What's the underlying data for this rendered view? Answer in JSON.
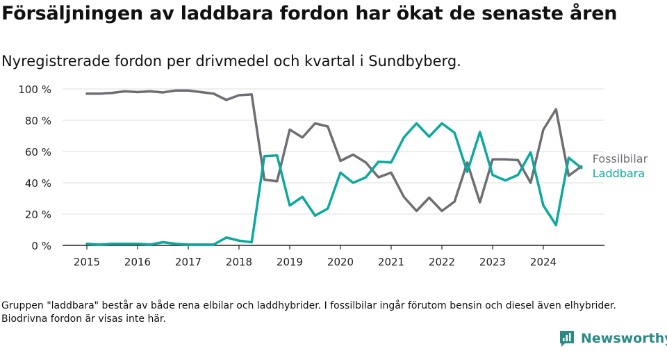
{
  "title": "Försäljningen av laddbara fordon har ökat de senaste åren",
  "subtitle": "Nyregistrerade fordon per drivmedel och kvartal i Sundbyberg.",
  "note": "Gruppen \"laddbara\" består av både rena elbilar och laddhybrider. I fossilbilar ingår förutom bensin och diesel även elhybrider. Biodrivna fordon är visas inte här.",
  "brand": "Newsworthy",
  "colors": {
    "fossil": "#6e6d73",
    "laddbara": "#0ba99d",
    "grid": "#dcdcdc",
    "axis": "#222222",
    "brand": "#2b8a86"
  },
  "chart_data": {
    "type": "line",
    "title": "Försäljningen av laddbara fordon har ökat de senaste åren",
    "xlabel": "",
    "ylabel": "",
    "ylim": [
      0,
      100
    ],
    "yticks": [
      0,
      20,
      40,
      60,
      80,
      100
    ],
    "ytick_labels": [
      "0 %",
      "20 %",
      "40 %",
      "60 %",
      "80 %",
      "100 %"
    ],
    "xticks": [
      2015,
      2016,
      2017,
      2018,
      2019,
      2020,
      2021,
      2022,
      2023,
      2024
    ],
    "x": [
      2015.0,
      2015.25,
      2015.5,
      2015.75,
      2016.0,
      2016.25,
      2016.5,
      2016.75,
      2017.0,
      2017.25,
      2017.5,
      2017.75,
      2018.0,
      2018.25,
      2018.5,
      2018.75,
      2019.0,
      2019.25,
      2019.5,
      2019.75,
      2020.0,
      2020.25,
      2020.5,
      2020.75,
      2021.0,
      2021.25,
      2021.5,
      2021.75,
      2022.0,
      2022.25,
      2022.5,
      2022.75,
      2023.0,
      2023.25,
      2023.5,
      2023.75,
      2024.0,
      2024.25,
      2024.5,
      2024.75
    ],
    "series": [
      {
        "name": "Fossilbilar",
        "values": [
          97,
          97,
          97.5,
          98.5,
          98,
          98.5,
          97.8,
          99,
          99,
          98,
          97,
          93,
          96,
          96.5,
          42,
          41,
          74,
          69,
          78,
          76,
          54,
          58,
          53,
          43.5,
          46.5,
          31,
          22,
          30.5,
          22,
          28,
          53,
          27.5,
          55,
          55,
          54.5,
          40,
          74,
          87,
          44.5,
          50.5
        ]
      },
      {
        "name": "Laddbara",
        "values": [
          1,
          0.5,
          1,
          1,
          1,
          0.5,
          2,
          1,
          0.5,
          0.5,
          0.5,
          5,
          3,
          2,
          57,
          57.5,
          25.5,
          31,
          19,
          23.5,
          46.5,
          40,
          43.5,
          53.5,
          53,
          69,
          78,
          69.5,
          78,
          72,
          47,
          72.5,
          45,
          41.5,
          45,
          59.5,
          25.5,
          13,
          56,
          49.5
        ]
      }
    ]
  }
}
